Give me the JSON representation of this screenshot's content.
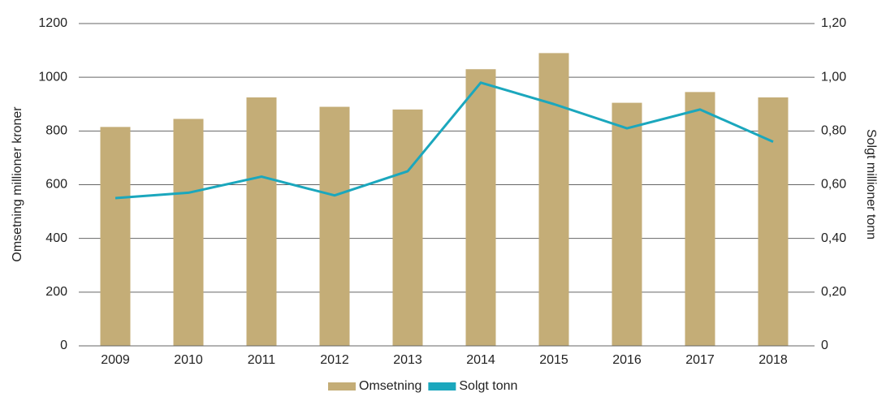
{
  "chart_data": {
    "type": "bar_line",
    "categories": [
      "2009",
      "2010",
      "2011",
      "2012",
      "2013",
      "2014",
      "2015",
      "2016",
      "2017",
      "2018"
    ],
    "y_label": "Omsetning millioner kroner",
    "y2_label": "Solgt millioner tonn",
    "series": [
      {
        "name": "Omsetning",
        "color": "#c4ad77",
        "type": "bar",
        "values": [
          815,
          845,
          925,
          890,
          880,
          1030,
          1090,
          905,
          945,
          925
        ]
      },
      {
        "name": "Solgt tonn",
        "color": "#1ba7bd",
        "type": "line",
        "axis": "y2",
        "values": [
          0.55,
          0.57,
          0.63,
          0.56,
          0.65,
          0.98,
          0.9,
          0.81,
          0.88,
          0.76
        ]
      }
    ],
    "ylim": [
      0,
      1200
    ],
    "yticks": [
      0,
      200,
      400,
      600,
      800,
      1000,
      1200
    ],
    "y2lim": [
      0,
      1.2
    ],
    "y2ticks": [
      0,
      {
        "value": 0.2,
        "label": "0,20"
      },
      {
        "value": 0.4,
        "label": "0,40"
      },
      {
        "value": 0.6,
        "label": "0,60"
      },
      {
        "value": 0.8,
        "label": "0,80"
      },
      {
        "value": 1.0,
        "label": "1,00"
      },
      {
        "value": 1.2,
        "label": "1,20"
      }
    ],
    "grid": true,
    "legend": "bottom"
  }
}
